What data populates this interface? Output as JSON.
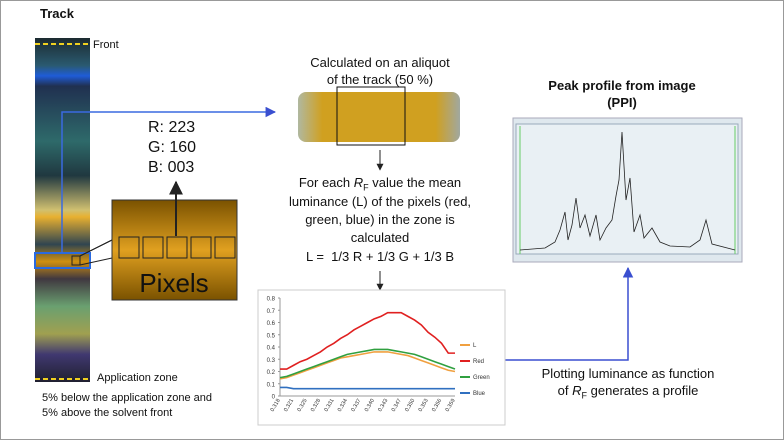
{
  "track": {
    "title": "Track",
    "front": "Front",
    "application_zone": "Application zone",
    "note": [
      "5% below the application zone and",
      "5% above the solvent front"
    ]
  },
  "pixel": {
    "r": "R: 223",
    "g": "G: 160",
    "b": "B: 003",
    "label": "Pixels"
  },
  "aliquot": {
    "lines": [
      "Calculated on an aliquot",
      "of the track (50 %)"
    ]
  },
  "luminance": {
    "first": [
      "For each ",
      "R",
      "F",
      " value the mean"
    ],
    "lines": [
      "luminance (L) of the pixels (red,",
      "green, blue) in the zone is",
      "calculated"
    ],
    "formula": "L =  1/3 R + 1/3 G + 1/3 B"
  },
  "ppi": {
    "title": [
      "Peak profile from image",
      "(PPI)"
    ]
  },
  "plotting": {
    "line1": "Plotting luminance as function",
    "line2": [
      "of ",
      "R",
      "F",
      " generates a profile"
    ]
  },
  "chart_data": {
    "type": "line",
    "categories": [
      "0.318",
      null,
      "0.321",
      null,
      "0.325",
      null,
      "0.328",
      null,
      "0.331",
      null,
      "0.334",
      null,
      "0.337",
      null,
      "0.340",
      null,
      "0.343",
      null,
      "0.347",
      null,
      "0.350",
      null,
      "0.353",
      null,
      "0.356",
      null,
      "0.359"
    ],
    "series": [
      {
        "name": "L",
        "color": "#f0a040",
        "values": [
          0.14,
          0.15,
          0.17,
          0.19,
          0.21,
          0.23,
          0.25,
          0.27,
          0.29,
          0.31,
          0.32,
          0.33,
          0.34,
          0.35,
          0.36,
          0.36,
          0.36,
          0.35,
          0.34,
          0.33,
          0.31,
          0.29,
          0.27,
          0.25,
          0.23,
          0.21,
          0.2
        ]
      },
      {
        "name": "Red",
        "color": "#e02020",
        "values": [
          0.22,
          0.22,
          0.25,
          0.28,
          0.3,
          0.33,
          0.36,
          0.4,
          0.43,
          0.47,
          0.5,
          0.54,
          0.57,
          0.6,
          0.63,
          0.65,
          0.68,
          0.68,
          0.68,
          0.65,
          0.62,
          0.58,
          0.52,
          0.48,
          0.43,
          0.35,
          0.35
        ]
      },
      {
        "name": "Green",
        "color": "#30a040",
        "values": [
          0.15,
          0.16,
          0.18,
          0.2,
          0.22,
          0.24,
          0.26,
          0.28,
          0.3,
          0.32,
          0.34,
          0.35,
          0.36,
          0.37,
          0.38,
          0.38,
          0.38,
          0.37,
          0.36,
          0.35,
          0.34,
          0.32,
          0.3,
          0.28,
          0.26,
          0.24,
          0.22
        ]
      },
      {
        "name": "Blue",
        "color": "#3070c0",
        "values": [
          0.07,
          0.07,
          0.06,
          0.06,
          0.06,
          0.06,
          0.06,
          0.06,
          0.06,
          0.06,
          0.06,
          0.06,
          0.06,
          0.06,
          0.06,
          0.06,
          0.06,
          0.06,
          0.06,
          0.06,
          0.06,
          0.06,
          0.06,
          0.06,
          0.06,
          0.06,
          0.06
        ]
      }
    ],
    "ylim": [
      0,
      0.8
    ],
    "yticks": [
      0,
      0.1,
      0.2,
      0.3,
      0.4,
      0.5,
      0.6,
      0.7,
      0.8
    ],
    "legend": "right"
  }
}
